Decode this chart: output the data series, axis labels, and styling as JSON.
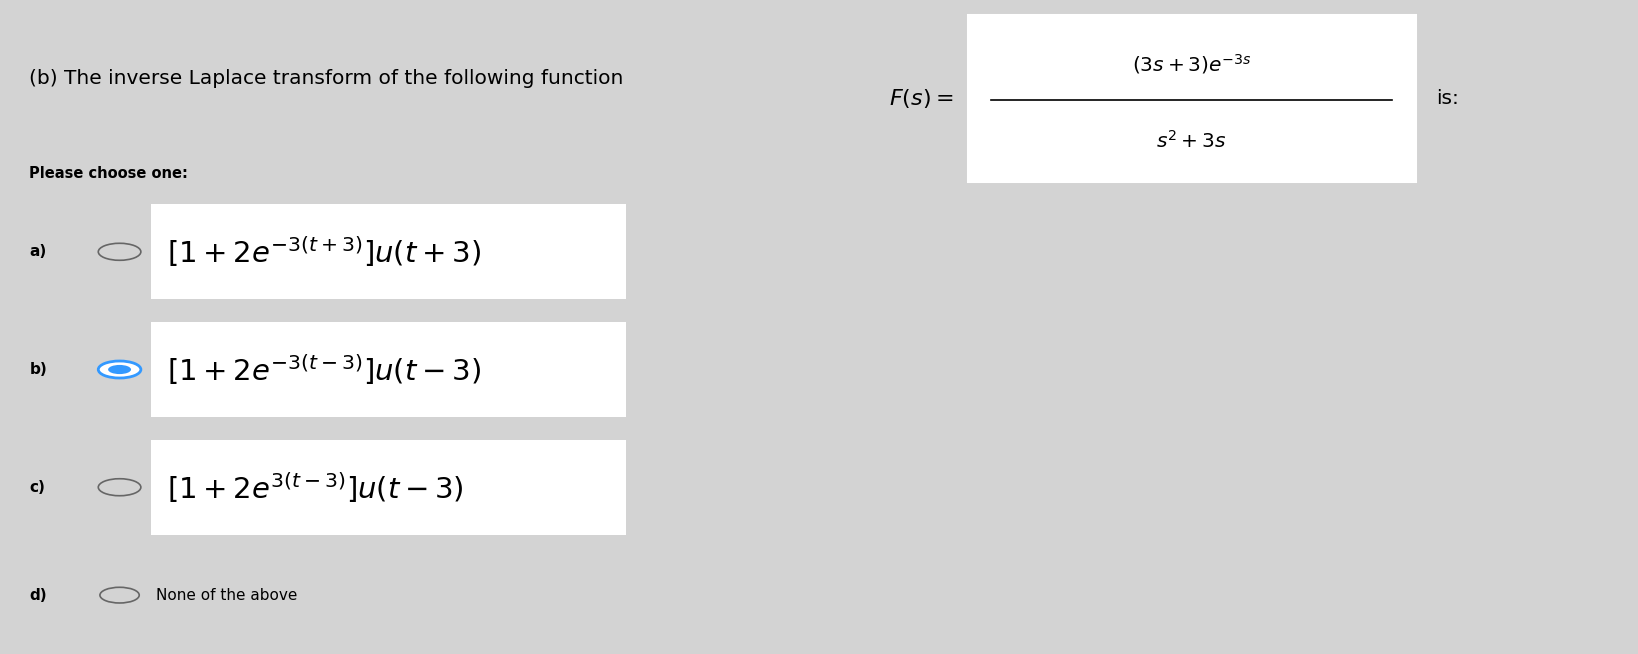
{
  "background_color": "#d3d3d3",
  "title_text": "(b) The inverse Laplace transform of the following function",
  "title_fontsize": 14.5,
  "please_choose_text": "Please choose one:",
  "please_choose_fontsize": 10.5,
  "formula_box_color": "#ffffff",
  "formula_numerator": "$(3s+3)e^{-3s}$",
  "formula_denominator": "$s^2+3s$",
  "formula_prefix": "$F(s) = $",
  "formula_suffix": "is:",
  "options": [
    {
      "label": "a)",
      "radio_filled": false,
      "math": "$[1 + 2e^{-3(t+3)}]u(t + 3)$"
    },
    {
      "label": "b)",
      "radio_filled": true,
      "math": "$[1 + 2e^{-3(t-3)}]u(t - 3)$"
    },
    {
      "label": "c)",
      "radio_filled": false,
      "math": "$[1 + 2e^{3(t-3)}]u(t - 3)$"
    },
    {
      "label": "d)",
      "radio_filled": false,
      "math": "None of the above"
    }
  ],
  "option_math_fontsize": 21,
  "label_fontsize": 11,
  "radio_color_empty": "#666666",
  "radio_color_filled_edge": "#3399ff",
  "radio_color_filled_dot": "#3399ff"
}
